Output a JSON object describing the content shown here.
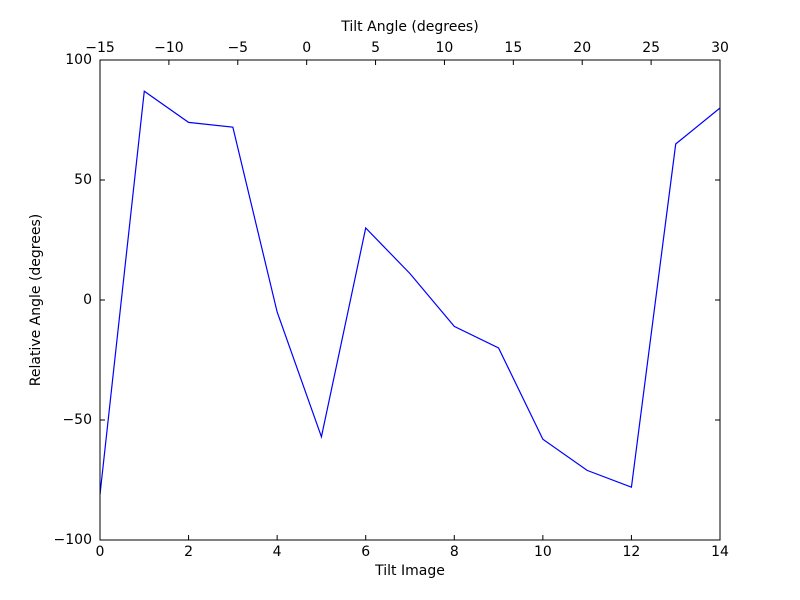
{
  "chart_data": {
    "type": "line",
    "x_label": "Tilt Image",
    "y_label": "Relative Angle (degrees)",
    "x2_label": "Tilt Angle (degrees)",
    "x": [
      0,
      1,
      2,
      3,
      4,
      5,
      6,
      7,
      8,
      9,
      10,
      11,
      12,
      13,
      14
    ],
    "values": [
      -81,
      87,
      74,
      72,
      -5,
      -57,
      30,
      11,
      -11,
      -20,
      -58,
      -71,
      -78,
      65,
      80
    ],
    "color": "#0000ff",
    "xlim": [
      0,
      14
    ],
    "xticks": [
      0,
      2,
      4,
      6,
      8,
      10,
      12,
      14
    ],
    "x2lim": [
      -15,
      30
    ],
    "x2ticks": [
      {
        "value": -15,
        "label": "−15"
      },
      {
        "value": -10,
        "label": "−10"
      },
      {
        "value": -5,
        "label": "−5"
      },
      0,
      5,
      10,
      15,
      20,
      25,
      30
    ],
    "ylim": [
      -100,
      100
    ],
    "yticks": [
      {
        "value": -100,
        "label": "−100"
      },
      {
        "value": -50,
        "label": "−50"
      },
      0,
      50,
      100
    ],
    "grid": false
  }
}
